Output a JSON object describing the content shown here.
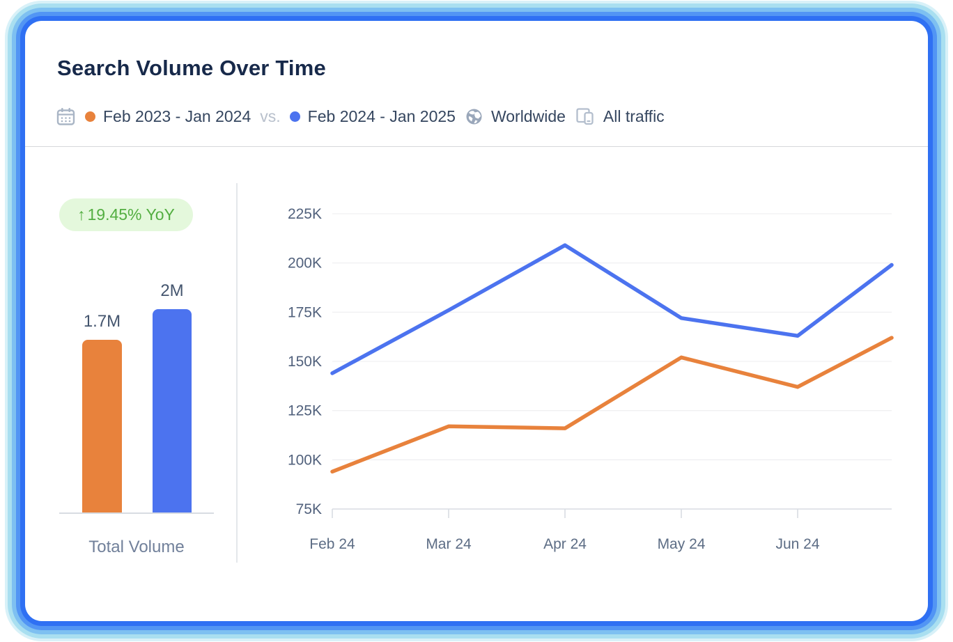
{
  "header": {
    "title": "Search Volume Over Time",
    "comparison": {
      "period_a": {
        "label": "Feb 2023 - Jan 2024",
        "color": "#E8823C"
      },
      "vs_label": "vs.",
      "period_b": {
        "label": "Feb 2024 - Jan 2025",
        "color": "#4C73EF"
      }
    },
    "region": {
      "label": "Worldwide"
    },
    "traffic": {
      "label": "All traffic"
    }
  },
  "summary": {
    "yoy_badge": {
      "arrow": "↑",
      "text": "19.45% YoY",
      "bg": "#E4F8DC",
      "color": "#53AE41"
    },
    "total_label": "Total Volume"
  },
  "chart_data": [
    {
      "type": "bar",
      "title": "Total Volume",
      "categories": [
        "Feb 2023 - Jan 2024",
        "Feb 2024 - Jan 2025"
      ],
      "values": [
        1700000,
        2000000
      ],
      "value_labels": [
        "1.7M",
        "2M"
      ],
      "colors": [
        "#E8823C",
        "#4C73EF"
      ],
      "ylim": [
        0,
        2000000
      ],
      "yoy_change_label": "↑19.45% YoY"
    },
    {
      "type": "line",
      "x_labels": [
        "Feb 24",
        "Mar 24",
        "Apr 24",
        "May 24",
        "Jun 24"
      ],
      "y_tick_labels": [
        "225K",
        "200K",
        "175K",
        "150K",
        "125K",
        "100K",
        "75K"
      ],
      "y_ticks": [
        225000,
        200000,
        175000,
        150000,
        125000,
        100000,
        75000
      ],
      "ylim": [
        75000,
        225000
      ],
      "grid": true,
      "legend_position": "header",
      "series": [
        {
          "name": "Feb 2023 - Jan 2024",
          "color": "#E8823C",
          "values": [
            94000,
            117000,
            116000,
            152000,
            137000
          ],
          "edge_value": 162000
        },
        {
          "name": "Feb 2024 - Jan 2025",
          "color": "#4C73EF",
          "values": [
            144000,
            176000,
            209000,
            172000,
            163000
          ],
          "edge_value": 199000
        }
      ],
      "note": "both lines continue past Jun 24 and are clipped at the right edge of the plot"
    }
  ]
}
